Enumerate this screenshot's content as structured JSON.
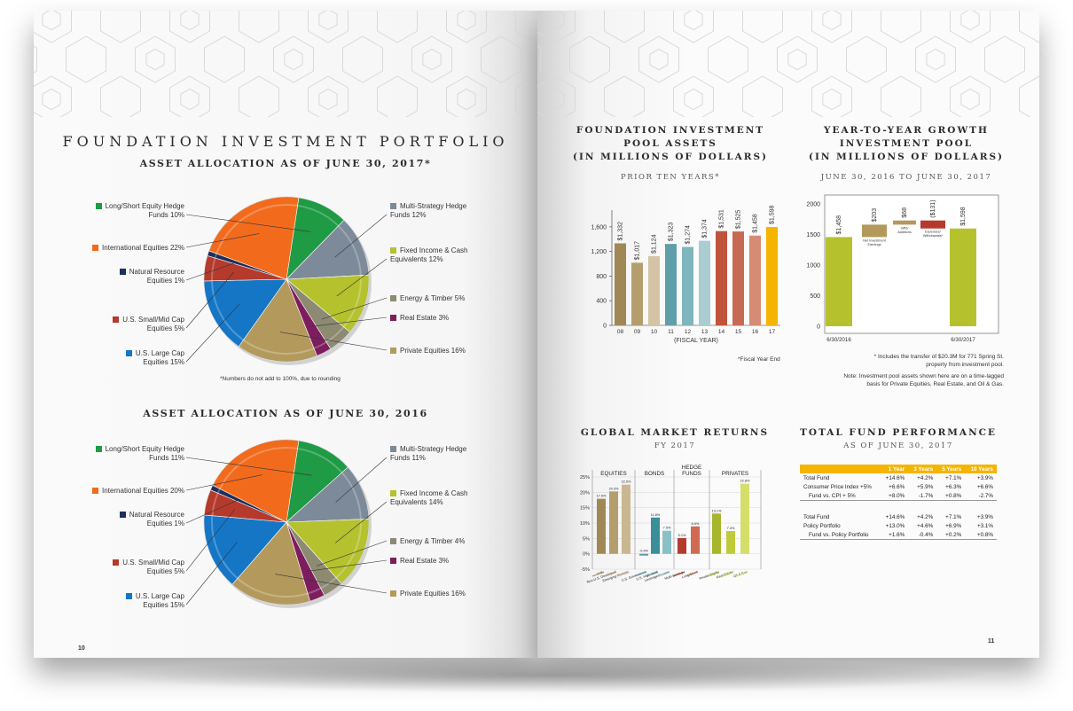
{
  "left_page": {
    "title": "FOUNDATION INVESTMENT PORTFOLIO",
    "page_number": "10",
    "rounding_note": "*Numbers do not add to 100%, due to rounding",
    "pie_2017": {
      "title": "ASSET ALLOCATION AS OF JUNE 30, 2017*",
      "labels": {
        "ls": [
          "Long/Short Equity Hedge",
          "Funds 10%"
        ],
        "ms": [
          "Multi-Strategy Hedge",
          "Funds 12%"
        ],
        "ie": [
          "International Equities 22%"
        ],
        "fi": [
          "Fixed Income & Cash",
          "Equivalents 12%"
        ],
        "nr": [
          "Natural Resource",
          "Equities 1%"
        ],
        "et": [
          "Energy & Timber 5%"
        ],
        "sm": [
          "U.S. Small/Mid Cap",
          "Equities 5%"
        ],
        "re": [
          "Real Estate 3%"
        ],
        "lc": [
          "U.S. Large Cap",
          "Equities 15%"
        ],
        "pe": [
          "Private Equities 16%"
        ]
      }
    },
    "pie_2016": {
      "title": "ASSET ALLOCATION AS OF JUNE 30, 2016",
      "labels": {
        "ls": [
          "Long/Short Equity Hedge",
          "Funds 11%"
        ],
        "ms": [
          "Multi-Strategy Hedge",
          "Funds 11%"
        ],
        "ie": [
          "International Equities 20%"
        ],
        "fi": [
          "Fixed Income & Cash",
          "Equivalents 14%"
        ],
        "nr": [
          "Natural Resource",
          "Equities 1%"
        ],
        "et": [
          "Energy & Timber 4%"
        ],
        "sm": [
          "U.S. Small/Mid Cap",
          "Equities 5%"
        ],
        "re": [
          "Real Estate 3%"
        ],
        "lc": [
          "U.S. Large Cap",
          "Equities 15%"
        ],
        "pe": [
          "Private Equities 16%"
        ]
      }
    }
  },
  "right_page": {
    "page_number": "11",
    "pool": {
      "title_lines": [
        "FOUNDATION INVESTMENT",
        "POOL ASSETS",
        "(IN MILLIONS OF DOLLARS)"
      ],
      "subtitle": "PRIOR TEN YEARS*",
      "footnote": "*Fiscal Year End"
    },
    "growth": {
      "title_lines": [
        "YEAR-TO-YEAR GROWTH",
        "INVESTMENT POOL",
        "(IN MILLIONS OF DOLLARS)"
      ],
      "subtitle": "JUNE 30, 2016 TO JUNE 30, 2017",
      "footnote_lines": [
        "* Includes the transfer of $20.3M for 771 Spring St.",
        "property from investment pool."
      ],
      "note_lines": [
        "Note: Investment pool assets shown here are on a time-lagged",
        "basis for Private Equities, Real Estate, and Oil & Gas."
      ]
    },
    "global": {
      "title": "GLOBAL MARKET RETURNS",
      "subtitle": "FY 2017"
    },
    "performance": {
      "title": "TOTAL FUND PERFORMANCE",
      "subtitle": "AS OF JUNE 30, 2017",
      "headers": [
        "",
        "1 Year",
        "3 Years",
        "5 Years",
        "10 Years"
      ],
      "rows": [
        [
          "Total Fund",
          "+14.6%",
          "+4.2%",
          "+7.1%",
          "+3.9%"
        ],
        [
          "Consumer Price Index +5%",
          "+6.6%",
          "+5.9%",
          "+6.3%",
          "+6.6%"
        ],
        [
          "Fund vs. CPI + 5%",
          "+8.0%",
          "-1.7%",
          "+0.8%",
          "-2.7%"
        ],
        [
          "",
          "",
          "",
          "",
          ""
        ],
        [
          "Total Fund",
          "+14.6%",
          "+4.2%",
          "+7.1%",
          "+3.9%"
        ],
        [
          "Policy Portfolio",
          "+13.0%",
          "+4.6%",
          "+6.9%",
          "+3.1%"
        ],
        [
          "Fund vs. Policy Portfolio",
          "+1.6%",
          "-0.4%",
          "+0.2%",
          "+0.8%"
        ]
      ]
    }
  },
  "chart_data": [
    {
      "type": "pie",
      "title": "ASSET ALLOCATION AS OF JUNE 30, 2017*",
      "slices": [
        {
          "label": "Long/Short Equity Hedge Funds",
          "value": 10,
          "color": "#1f9a45"
        },
        {
          "label": "Multi-Strategy Hedge Funds",
          "value": 12,
          "color": "#7d8a99"
        },
        {
          "label": "Fixed Income & Cash Equivalents",
          "value": 12,
          "color": "#b5c22e"
        },
        {
          "label": "Energy & Timber",
          "value": 5,
          "color": "#8d8a72"
        },
        {
          "label": "Real Estate",
          "value": 3,
          "color": "#7d1d5e"
        },
        {
          "label": "Private Equities",
          "value": 16,
          "color": "#b39a5c"
        },
        {
          "label": "U.S. Large Cap Equities",
          "value": 15,
          "color": "#1576c6"
        },
        {
          "label": "U.S. Small/Mid Cap Equities",
          "value": 5,
          "color": "#b53a2c"
        },
        {
          "label": "Natural Resource Equities",
          "value": 1,
          "color": "#1d2f5e"
        },
        {
          "label": "International Equities",
          "value": 22,
          "color": "#f26b1d"
        }
      ]
    },
    {
      "type": "pie",
      "title": "ASSET ALLOCATION AS OF JUNE 30, 2016",
      "slices": [
        {
          "label": "Long/Short Equity Hedge Funds",
          "value": 11,
          "color": "#1f9a45"
        },
        {
          "label": "Multi-Strategy Hedge Funds",
          "value": 11,
          "color": "#7d8a99"
        },
        {
          "label": "Fixed Income & Cash Equivalents",
          "value": 14,
          "color": "#b5c22e"
        },
        {
          "label": "Energy & Timber",
          "value": 4,
          "color": "#8d8a72"
        },
        {
          "label": "Real Estate",
          "value": 3,
          "color": "#7d1d5e"
        },
        {
          "label": "Private Equities",
          "value": 16,
          "color": "#b39a5c"
        },
        {
          "label": "U.S. Large Cap Equities",
          "value": 15,
          "color": "#1576c6"
        },
        {
          "label": "U.S. Small/Mid Cap Equities",
          "value": 5,
          "color": "#b53a2c"
        },
        {
          "label": "Natural Resource Equities",
          "value": 1,
          "color": "#1d2f5e"
        },
        {
          "label": "International Equities",
          "value": 20,
          "color": "#f26b1d"
        }
      ]
    },
    {
      "type": "bar",
      "title": "FOUNDATION INVESTMENT POOL ASSETS (IN MILLIONS OF DOLLARS)",
      "xlabel": "(FISCAL YEAR)",
      "categories": [
        "08",
        "09",
        "10",
        "11",
        "12",
        "13",
        "14",
        "15",
        "16",
        "17"
      ],
      "values": [
        1332,
        1017,
        1124,
        1323,
        1274,
        1374,
        1531,
        1525,
        1458,
        1598
      ],
      "value_labels": [
        "$1,332",
        "$1,017",
        "$1,124",
        "$1,323",
        "$1,274",
        "$1,374",
        "$1,531",
        "$1,525",
        "$1,458",
        "$1,598"
      ],
      "colors": [
        "#a08756",
        "#b59e6e",
        "#d2c4a5",
        "#5f9fa9",
        "#7fb5bd",
        "#a9cdd2",
        "#c0533c",
        "#c86a52",
        "#d68b74",
        "#f5b400"
      ],
      "yticks": [
        "0",
        "400",
        "800",
        "1,200",
        "1,600"
      ],
      "ylim": [
        0,
        1800
      ]
    },
    {
      "type": "bar",
      "title": "YEAR-TO-YEAR GROWTH INVESTMENT POOL (IN MILLIONS OF DOLLARS)",
      "categories": [
        "6/30/2016",
        "Net Investment Earnings",
        "Gifts/ Additions",
        "Expenses/ Withdrawals*",
        "6/30/2017"
      ],
      "values": [
        1458,
        203,
        68,
        -131,
        1598
      ],
      "value_labels": [
        "$1,458",
        "$203",
        "$68",
        "($131)",
        "$1,598"
      ],
      "colors": [
        "#b5c22e",
        "#b39a5c",
        "#b39a5c",
        "#b53a2c",
        "#b5c22e"
      ],
      "yticks": [
        "0",
        "500",
        "1000",
        "1500",
        "2000"
      ],
      "ylim": [
        0,
        2000
      ]
    },
    {
      "type": "bar",
      "title": "GLOBAL MARKET RETURNS",
      "groups": [
        "EQUITIES",
        "BONDS",
        "HEDGE FUNDS",
        "PRIVATES"
      ],
      "categories": [
        "U.S.",
        "Non-U.S. Developed",
        "Emerging Markets",
        "U.S. Government",
        "U.S. High Yield",
        "Leveraged Loans",
        "Multi-Strategy",
        "Long/Short",
        "Private Equity",
        "Real Estate",
        "Oil & Gas"
      ],
      "values": [
        17.9,
        20.3,
        22.5,
        -0.6,
        11.8,
        7.5,
        5.1,
        8.9,
        13.1,
        7.4,
        22.8
      ],
      "value_labels": [
        "17.9%",
        "20.3%",
        "22.5%",
        "-0.6%",
        "11.8%",
        "7.5%",
        "5.1%",
        "8.9%",
        "13.1%",
        "7.4%",
        "22.8%"
      ],
      "colors": [
        "#a08756",
        "#b59e6e",
        "#c9b791",
        "#5f9fa9",
        "#3a8f9a",
        "#8cc0c7",
        "#b53a2c",
        "#d06a52",
        "#a7b62a",
        "#bfcb3b",
        "#d4de6b"
      ],
      "yticks": [
        "-5%",
        "0%",
        "5%",
        "10%",
        "15%",
        "20%",
        "25%"
      ],
      "ylim": [
        -5,
        25
      ]
    }
  ]
}
